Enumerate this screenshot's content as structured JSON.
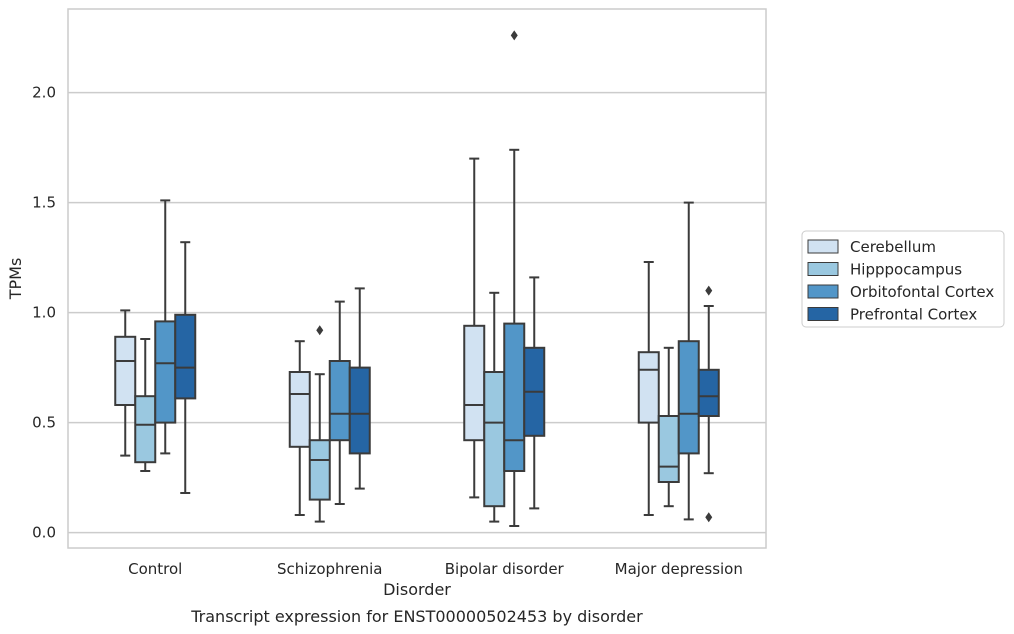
{
  "caption": "Transcript expression for ENST00000502453 by disorder",
  "chart_data": {
    "type": "box",
    "xlabel": "Disorder",
    "ylabel": "TPMs",
    "ylim": [
      -0.07,
      2.38
    ],
    "y_ticks": [
      0.0,
      0.5,
      1.0,
      1.5,
      2.0
    ],
    "y_tick_labels": [
      "0.0",
      "0.5",
      "1.0",
      "1.5",
      "2.0"
    ],
    "grid": "horizontal",
    "legend_position": "right",
    "categories": [
      "Control",
      "Schizophrenia",
      "Bipolar disorder",
      "Major depression"
    ],
    "series": [
      {
        "name": "Cerebellum",
        "color": "#d1e2f2",
        "boxes": [
          {
            "whislo": 0.35,
            "q1": 0.58,
            "med": 0.78,
            "q3": 0.89,
            "whishi": 1.01,
            "fliers": []
          },
          {
            "whislo": 0.08,
            "q1": 0.39,
            "med": 0.63,
            "q3": 0.73,
            "whishi": 0.87,
            "fliers": []
          },
          {
            "whislo": 0.16,
            "q1": 0.42,
            "med": 0.58,
            "q3": 0.94,
            "whishi": 1.7,
            "fliers": []
          },
          {
            "whislo": 0.08,
            "q1": 0.5,
            "med": 0.74,
            "q3": 0.82,
            "whishi": 1.23,
            "fliers": []
          }
        ]
      },
      {
        "name": "Hipppocampus",
        "color": "#9ac8e0",
        "boxes": [
          {
            "whislo": 0.28,
            "q1": 0.32,
            "med": 0.49,
            "q3": 0.62,
            "whishi": 0.88,
            "fliers": []
          },
          {
            "whislo": 0.05,
            "q1": 0.15,
            "med": 0.33,
            "q3": 0.42,
            "whishi": 0.72,
            "fliers": [
              0.92
            ]
          },
          {
            "whislo": 0.05,
            "q1": 0.12,
            "med": 0.5,
            "q3": 0.73,
            "whishi": 1.09,
            "fliers": []
          },
          {
            "whislo": 0.12,
            "q1": 0.23,
            "med": 0.3,
            "q3": 0.53,
            "whishi": 0.84,
            "fliers": []
          }
        ]
      },
      {
        "name": "Orbitofontal Cortex",
        "color": "#5296c8",
        "boxes": [
          {
            "whislo": 0.36,
            "q1": 0.5,
            "med": 0.77,
            "q3": 0.96,
            "whishi": 1.51,
            "fliers": []
          },
          {
            "whislo": 0.13,
            "q1": 0.42,
            "med": 0.54,
            "q3": 0.78,
            "whishi": 1.05,
            "fliers": []
          },
          {
            "whislo": 0.03,
            "q1": 0.28,
            "med": 0.42,
            "q3": 0.95,
            "whishi": 1.74,
            "fliers": [
              2.26
            ]
          },
          {
            "whislo": 0.06,
            "q1": 0.36,
            "med": 0.54,
            "q3": 0.87,
            "whishi": 1.5,
            "fliers": []
          }
        ]
      },
      {
        "name": "Prefrontal Cortex",
        "color": "#2565a4",
        "boxes": [
          {
            "whislo": 0.18,
            "q1": 0.61,
            "med": 0.75,
            "q3": 0.99,
            "whishi": 1.32,
            "fliers": []
          },
          {
            "whislo": 0.2,
            "q1": 0.36,
            "med": 0.54,
            "q3": 0.75,
            "whishi": 1.11,
            "fliers": []
          },
          {
            "whislo": 0.11,
            "q1": 0.44,
            "med": 0.64,
            "q3": 0.84,
            "whishi": 1.16,
            "fliers": []
          },
          {
            "whislo": 0.27,
            "q1": 0.53,
            "med": 0.62,
            "q3": 0.74,
            "whishi": 1.03,
            "fliers": [
              1.1,
              0.07
            ]
          }
        ]
      }
    ]
  },
  "colors": {
    "grid": "#cccccc",
    "frame": "#cccccc",
    "box_edge": "#3b3b3b",
    "text": "#262626"
  }
}
